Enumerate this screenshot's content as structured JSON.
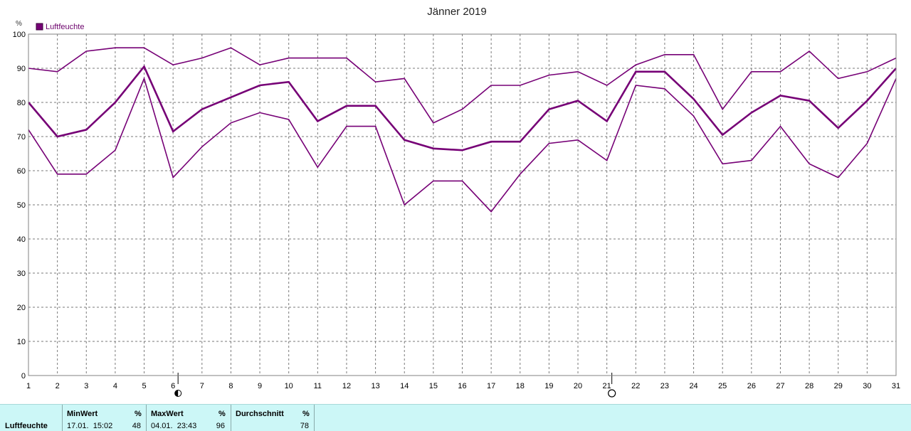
{
  "colors": {
    "series": "#760076",
    "grid": "#7a7a7a",
    "summary_bg": "#ccf7f7"
  },
  "chart_data": {
    "type": "line",
    "title": "Jänner 2019",
    "unit": "%",
    "legend": {
      "label": "Luftfeuchte",
      "placement": "top-left"
    },
    "ylim": [
      0,
      100
    ],
    "yticks": [
      0,
      10,
      20,
      30,
      40,
      50,
      60,
      70,
      80,
      90,
      100
    ],
    "x": [
      1,
      2,
      3,
      4,
      5,
      6,
      7,
      8,
      9,
      10,
      11,
      12,
      13,
      14,
      15,
      16,
      17,
      18,
      19,
      20,
      21,
      22,
      23,
      24,
      25,
      26,
      27,
      28,
      29,
      30,
      31
    ],
    "grid": true,
    "moon_phases": [
      {
        "day": 6,
        "icon": "half-moon-icon"
      },
      {
        "day": 21,
        "icon": "full-moon-icon"
      }
    ],
    "series": [
      {
        "values": [
          90,
          89,
          95,
          96,
          96,
          91,
          93,
          96,
          91,
          93,
          93,
          93,
          86,
          87,
          74,
          78,
          85,
          85,
          88,
          89,
          85,
          91,
          94,
          94,
          78,
          89,
          89,
          95,
          87,
          89,
          93
        ]
      },
      {
        "values": [
          80,
          70,
          72,
          80,
          90.5,
          71.5,
          78,
          81.5,
          85,
          86,
          74.5,
          79,
          79,
          69,
          66.5,
          66,
          68.5,
          68.5,
          78,
          80.5,
          74.5,
          89,
          89,
          81,
          70.5,
          77,
          82,
          80.5,
          72.5,
          80.5,
          90
        ]
      },
      {
        "values": [
          72,
          59,
          59,
          66,
          87,
          58,
          67,
          74,
          77,
          75,
          61,
          73,
          73,
          50,
          57,
          57,
          48,
          59,
          68,
          69,
          63,
          85,
          84,
          76,
          62,
          63,
          73,
          62,
          58,
          68,
          87
        ]
      }
    ]
  },
  "summary": {
    "row_label": "Luftfeuchte",
    "min": {
      "header": "MinWert",
      "unit": "%",
      "when": "17.01.  15:02",
      "value": "48"
    },
    "max": {
      "header": "MaxWert",
      "unit": "%",
      "when": "04.01.  23:43",
      "value": "96"
    },
    "avg": {
      "header": "Durchschnitt",
      "unit": "%",
      "value": "78"
    }
  }
}
